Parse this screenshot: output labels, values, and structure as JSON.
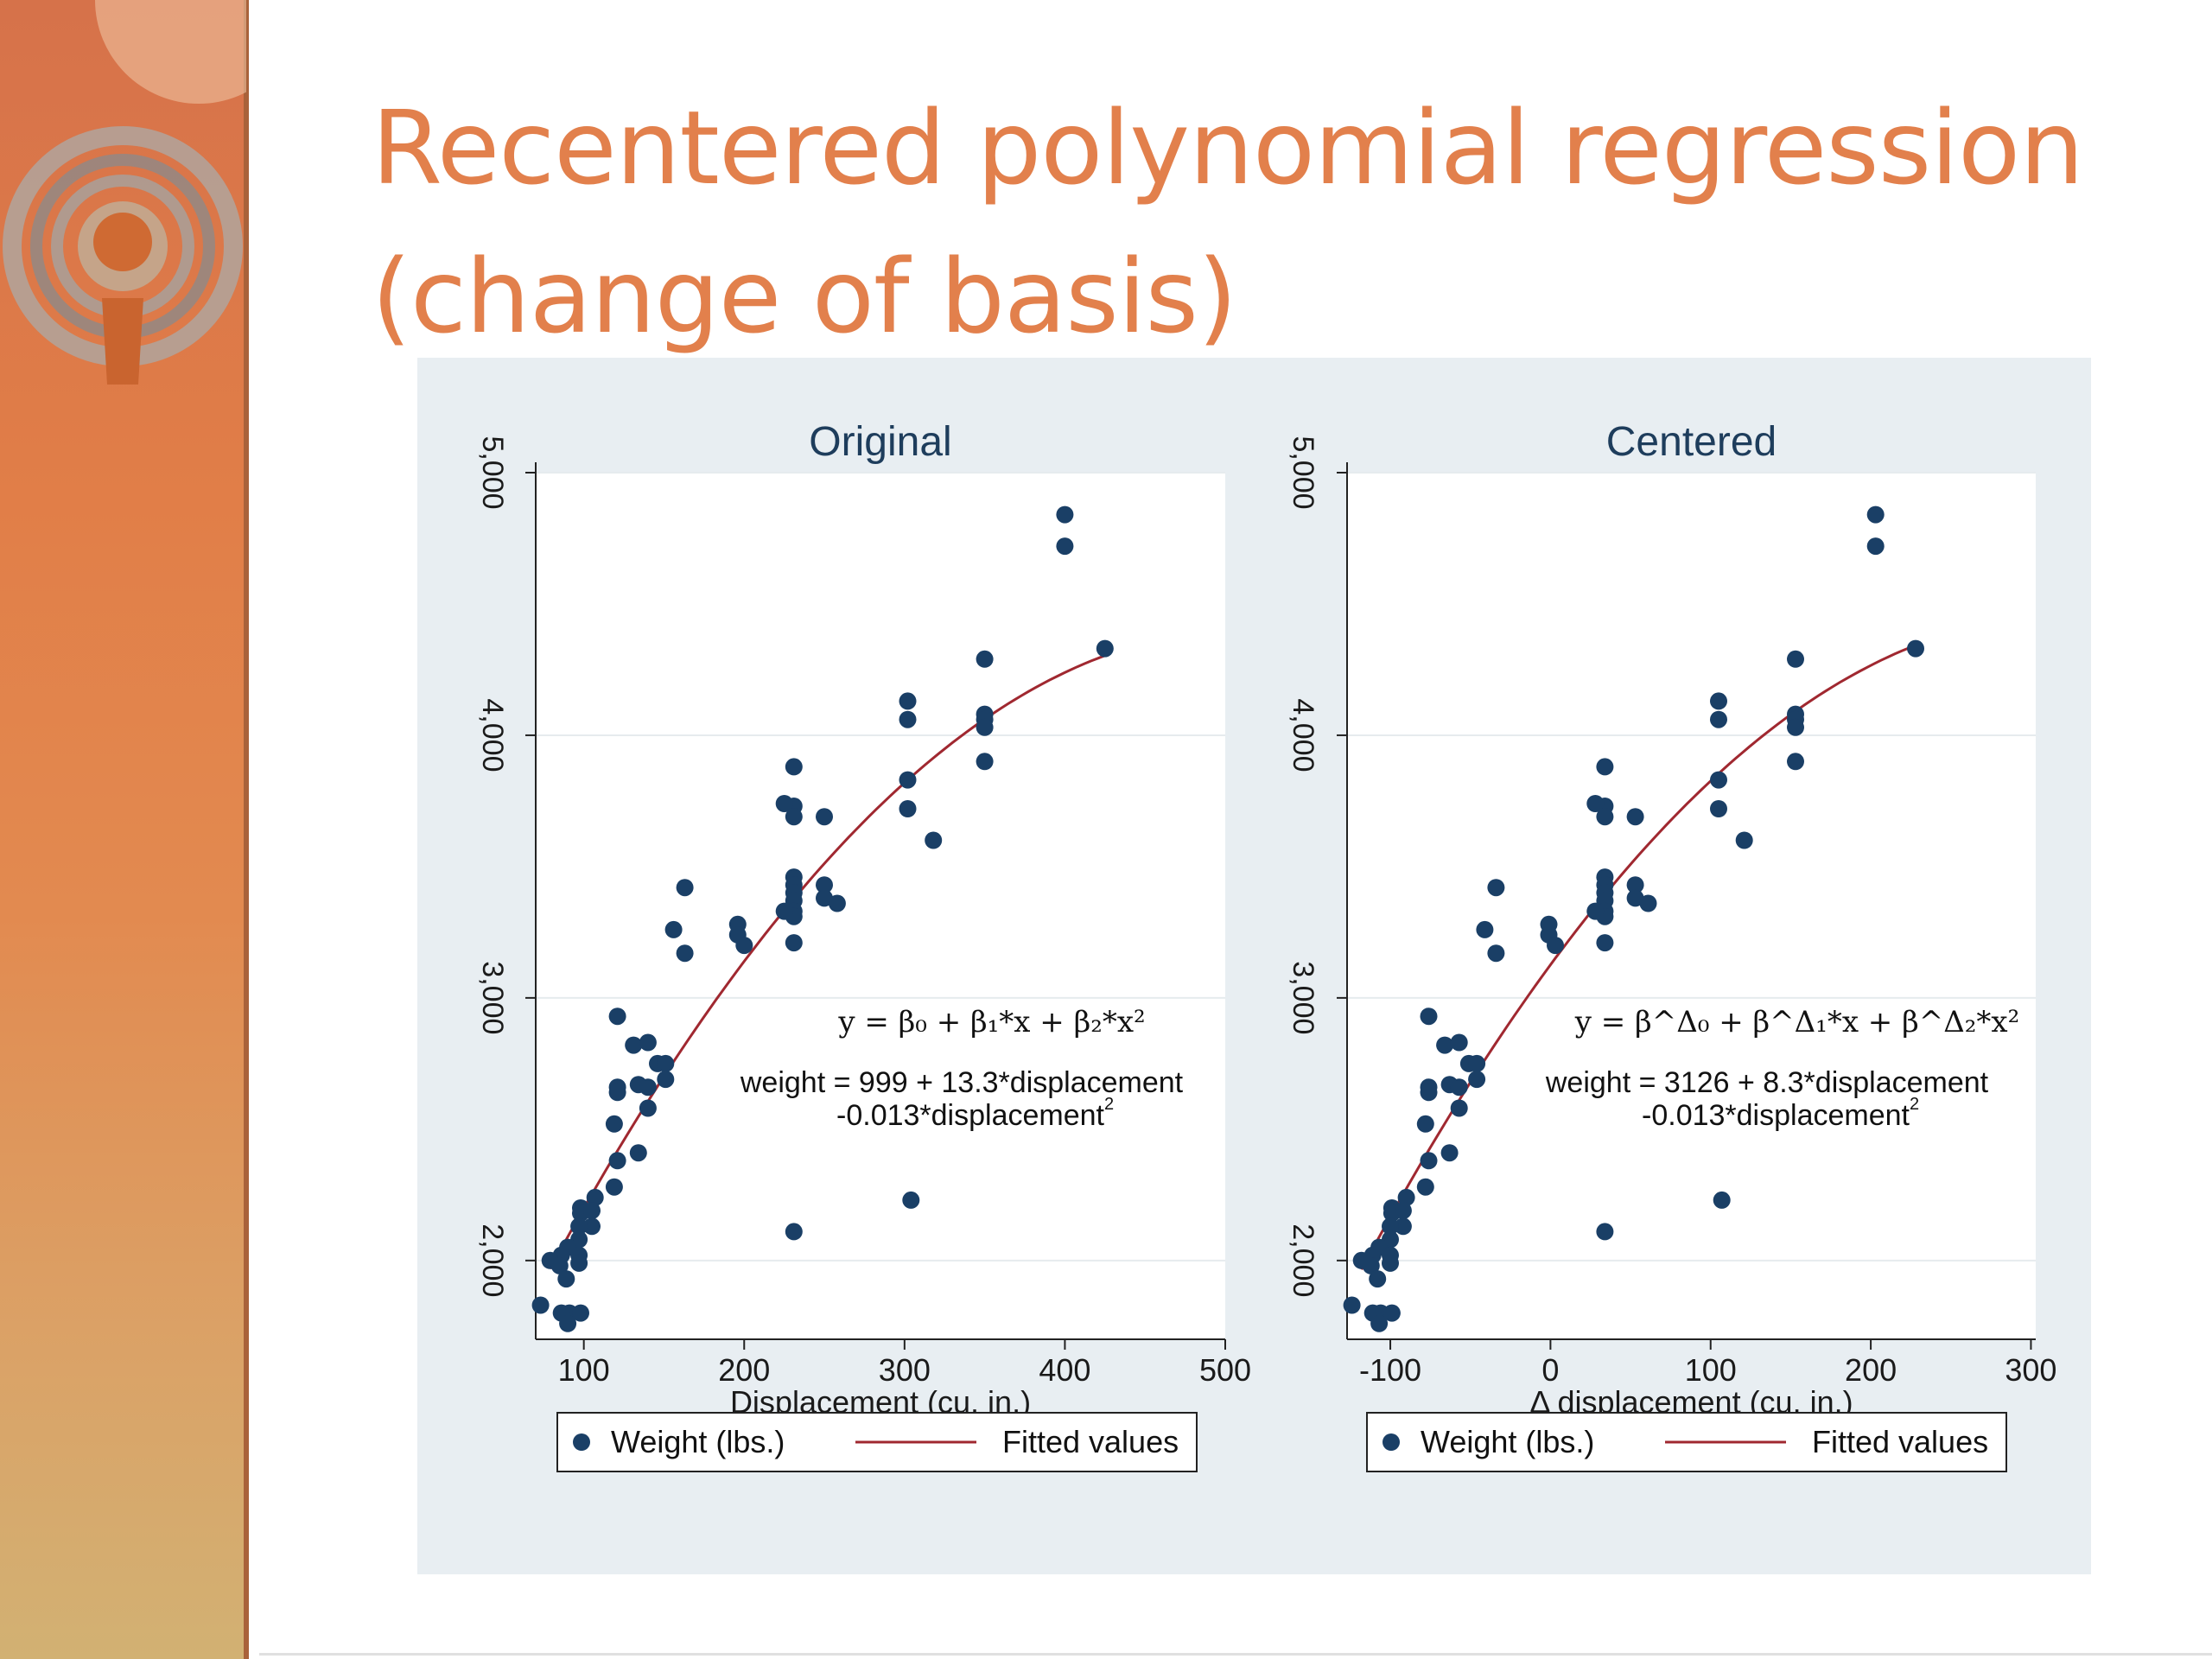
{
  "slide": {
    "title_line1": "Recentered polynomial regression",
    "title_line2": "(change of basis)"
  },
  "colors": {
    "title": "#e2804c",
    "marker": "#1a3f66",
    "fit_line": "#a02830",
    "panel_bg": "#e8eef2"
  },
  "chart_data": [
    {
      "type": "scatter",
      "title": "Original",
      "xlabel": "Displacement (cu. in.)",
      "ylabel": "",
      "xlim": [
        70,
        500
      ],
      "ylim": [
        1700,
        5000
      ],
      "xticks": [
        100,
        200,
        300,
        400,
        500
      ],
      "xtick_labels": [
        "100",
        "200",
        "300",
        "400",
        "500"
      ],
      "yticks": [
        2000,
        3000,
        4000,
        5000
      ],
      "ytick_labels": [
        "2,000",
        "3,000",
        "4,000",
        "5,000"
      ],
      "legend": [
        "Weight (lbs.)",
        "Fitted values"
      ],
      "equation_general": "y = β₀ + β₁*x + β₂*x²",
      "equation_line1": "weight =  999 + 13.3*displacement",
      "equation_line2": "-0.013*displacement",
      "equation_line2_sup": "2",
      "fit": {
        "intercept": 999,
        "b1": 13.3,
        "b2": -0.013,
        "x_range": [
          79,
          425
        ]
      },
      "points": [
        [
          400,
          4840
        ],
        [
          400,
          4720
        ],
        [
          425,
          4330
        ],
        [
          350,
          4290
        ],
        [
          350,
          4080
        ],
        [
          350,
          4060
        ],
        [
          350,
          4030
        ],
        [
          350,
          3900
        ],
        [
          302,
          4130
        ],
        [
          302,
          4060
        ],
        [
          302,
          3830
        ],
        [
          302,
          3720
        ],
        [
          318,
          3600
        ],
        [
          304,
          2230
        ],
        [
          231,
          3880
        ],
        [
          231,
          3730
        ],
        [
          231,
          3690
        ],
        [
          231,
          3460
        ],
        [
          231,
          3430
        ],
        [
          231,
          3400
        ],
        [
          231,
          3370
        ],
        [
          231,
          3330
        ],
        [
          231,
          3310
        ],
        [
          231,
          3210
        ],
        [
          231,
          2110
        ],
        [
          225,
          3740
        ],
        [
          250,
          3690
        ],
        [
          250,
          3430
        ],
        [
          250,
          3380
        ],
        [
          258,
          3360
        ],
        [
          225,
          3330
        ],
        [
          196,
          3280
        ],
        [
          196,
          3240
        ],
        [
          200,
          3200
        ],
        [
          163,
          3420
        ],
        [
          156,
          3260
        ],
        [
          163,
          3170
        ],
        [
          121,
          2930
        ],
        [
          131,
          2820
        ],
        [
          140,
          2830
        ],
        [
          146,
          2750
        ],
        [
          151,
          2750
        ],
        [
          151,
          2690
        ],
        [
          134,
          2670
        ],
        [
          140,
          2660
        ],
        [
          121,
          2660
        ],
        [
          121,
          2640
        ],
        [
          140,
          2580
        ],
        [
          119,
          2520
        ],
        [
          121,
          2380
        ],
        [
          134,
          2410
        ],
        [
          119,
          2280
        ],
        [
          107,
          2240
        ],
        [
          98,
          2200
        ],
        [
          98,
          2180
        ],
        [
          105,
          2190
        ],
        [
          105,
          2130
        ],
        [
          97,
          2130
        ],
        [
          97,
          2080
        ],
        [
          90,
          2050
        ],
        [
          97,
          2020
        ],
        [
          86,
          2020
        ],
        [
          79,
          2000
        ],
        [
          97,
          1990
        ],
        [
          85,
          1980
        ],
        [
          89,
          1930
        ],
        [
          91,
          1800
        ],
        [
          98,
          1800
        ],
        [
          86,
          1800
        ],
        [
          73,
          1830
        ],
        [
          90,
          1760
        ]
      ]
    },
    {
      "type": "scatter",
      "title": "Centered",
      "xlabel": "Δ displacement (cu. in.)",
      "ylabel": "",
      "xlim": [
        -127,
        303
      ],
      "ylim": [
        1700,
        5000
      ],
      "xticks": [
        -100,
        0,
        100,
        200,
        300
      ],
      "xtick_labels": [
        "-100",
        "0",
        "100",
        "200",
        "300"
      ],
      "yticks": [
        2000,
        3000,
        4000,
        5000
      ],
      "ytick_labels": [
        "2,000",
        "3,000",
        "4,000",
        "5,000"
      ],
      "legend": [
        "Weight (lbs.)",
        "Fitted values"
      ],
      "equation_general": "y = β^Δ₀ + β^Δ₁*x + β^Δ₂*x²",
      "equation_line1": "weight = 3126 + 8.3*displacement",
      "equation_line2": "-0.013*displacement",
      "equation_line2_sup": "2",
      "fit": {
        "intercept": 3126,
        "b1": 8.3,
        "b2": -0.013,
        "x_range": [
          -118,
          228
        ]
      },
      "x_shift": -197,
      "points_note": "same weights as Original, displacement shifted by -197"
    }
  ]
}
